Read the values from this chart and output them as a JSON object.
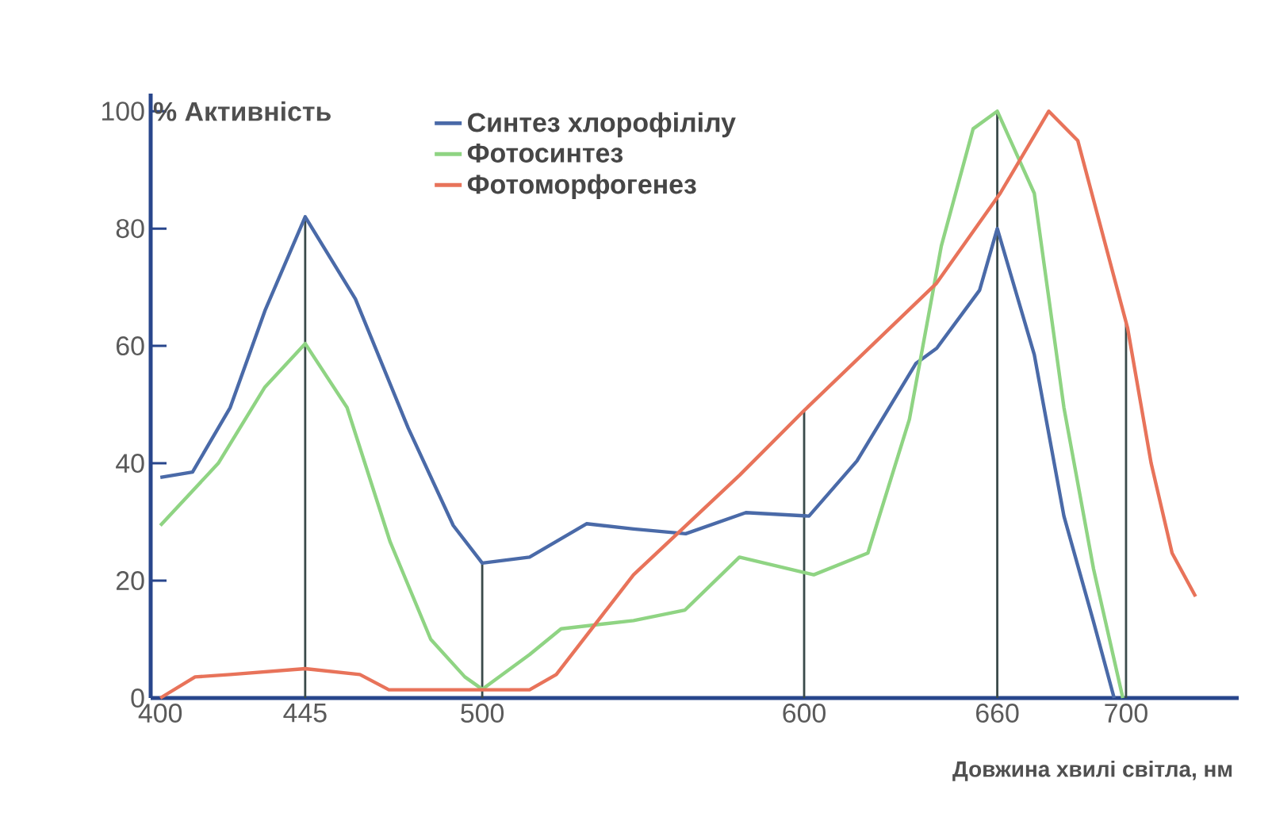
{
  "chart_data": {
    "type": "line",
    "ylabel": "% Активність",
    "xlabel": "Довжина хвилі світла, нм",
    "xlim": [
      397,
      735
    ],
    "ylim": [
      0,
      103
    ],
    "xticks": [
      400,
      445,
      500,
      600,
      660,
      700
    ],
    "yticks": [
      0,
      20,
      40,
      60,
      80,
      100
    ],
    "legend": "top",
    "marker": "none",
    "line_style": "solid",
    "series": [
      {
        "name": "Синтез хлорофілілу",
        "color": "#4a6aa8",
        "x": [
          400,
          410,
          421.7,
          432.5,
          445,
          460.6,
          477,
          491,
          500,
          514.7,
          532.4,
          547,
          563.2,
          581.9,
          601.5,
          616.4,
          634.7,
          641.2,
          654.5,
          660,
          671.5,
          680.7,
          689.9,
          696.3
        ],
        "values": [
          37.6,
          38.5,
          49.5,
          66,
          82,
          68,
          46,
          29.4,
          23,
          24,
          29.7,
          28.8,
          28,
          31.6,
          31,
          40.4,
          57,
          59.6,
          69.5,
          80,
          58.5,
          31,
          13,
          0
        ]
      },
      {
        "name": "Фотосинтез",
        "color": "#8fd483",
        "x": [
          400,
          418,
          432.5,
          445,
          458,
          471.4,
          484,
          494.6,
          500,
          514.7,
          524.5,
          547,
          563,
          579.9,
          603,
          619.8,
          632.7,
          642.6,
          652.5,
          660,
          671.5,
          680.7,
          689.9,
          699
        ],
        "values": [
          29.4,
          40,
          53,
          60.4,
          49.5,
          26.6,
          10,
          3.6,
          1.5,
          7.4,
          11.8,
          13.2,
          15,
          24,
          21,
          24.7,
          47.5,
          77,
          97,
          100,
          86,
          49.5,
          22,
          0
        ]
      },
      {
        "name": "Фотоморфогенез",
        "color": "#e8735a",
        "x": [
          400,
          410.8,
          421.7,
          445,
          462,
          471,
          500,
          514.7,
          523,
          547,
          580,
          600,
          641,
          660.9,
          676,
          685,
          700.5,
          707.8,
          714.3,
          721.6
        ],
        "values": [
          0,
          3.6,
          4,
          5,
          4,
          1.4,
          1.4,
          1.4,
          4,
          21,
          38,
          49,
          70.6,
          86,
          100,
          95,
          63,
          40,
          24.7,
          17.3
        ]
      }
    ],
    "ref_lines": [
      {
        "axis": "x",
        "value": 445,
        "color": "#3a4a4a"
      },
      {
        "axis": "x",
        "value": 500,
        "color": "#3a4a4a"
      },
      {
        "axis": "x",
        "value": 600,
        "color": "#3a4a4a"
      },
      {
        "axis": "x",
        "value": 660,
        "color": "#3a4a4a"
      },
      {
        "axis": "x",
        "value": 700,
        "color": "#3a4a4a"
      }
    ]
  }
}
